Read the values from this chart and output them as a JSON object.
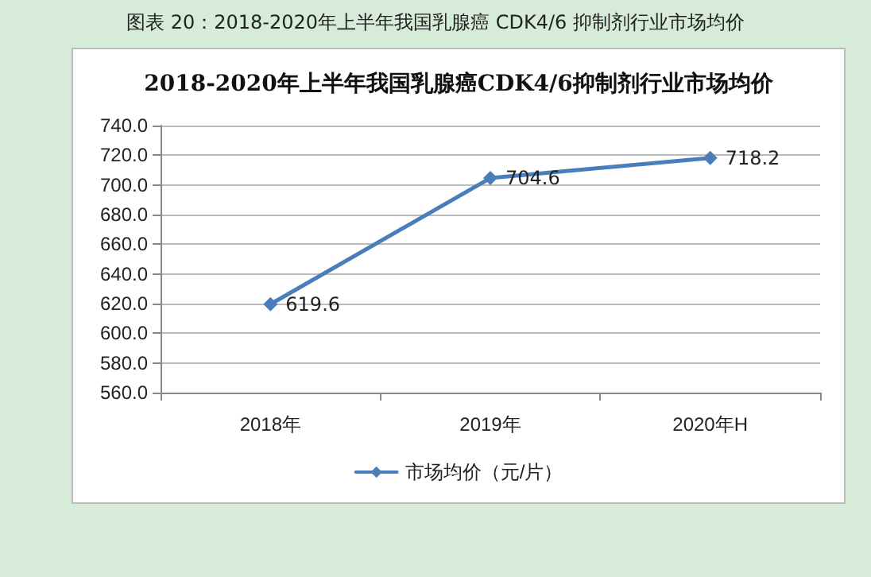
{
  "chart_data": {
    "type": "line",
    "title": "图表 20：2018-2020年上半年我国乳腺癌 CDK4/6 抑制剂行业市场均价",
    "subtitle": "2018-2020年上半年我国乳腺癌CDK4/6抑制剂行业市场均价",
    "categories": [
      "2018年",
      "2019年",
      "2020年H"
    ],
    "series": [
      {
        "name": "市场均价（元/片）",
        "color": "#4a7ebb",
        "values": [
          619.6,
          704.6,
          718.2
        ]
      }
    ],
    "ylim": [
      560,
      740
    ],
    "yticks": [
      {
        "value": 560,
        "label": "560.0"
      },
      {
        "value": 580,
        "label": "580.0"
      },
      {
        "value": 600,
        "label": "600.0"
      },
      {
        "value": 620,
        "label": "620.0"
      },
      {
        "value": 640,
        "label": "640.0"
      },
      {
        "value": 660,
        "label": "660.0"
      },
      {
        "value": 680,
        "label": "680.0"
      },
      {
        "value": 700,
        "label": "700.0"
      },
      {
        "value": 720,
        "label": "720.0"
      },
      {
        "value": 740,
        "label": "740.0"
      }
    ],
    "grid": "y",
    "legend": "bottom",
    "marker": "diamond",
    "line_style": "solid",
    "data_labels": true
  }
}
